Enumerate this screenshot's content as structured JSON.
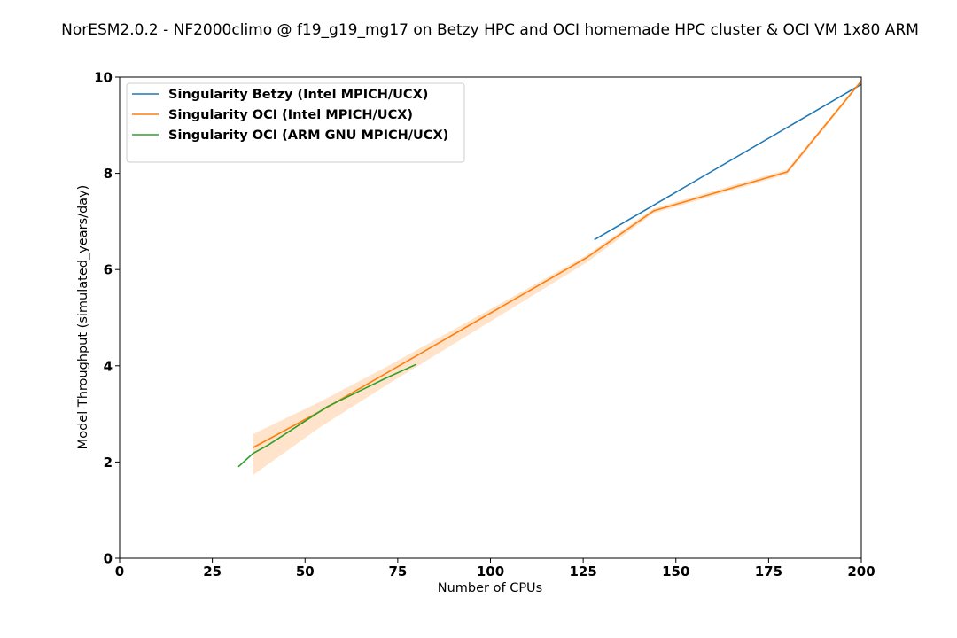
{
  "chart_data": {
    "type": "line",
    "title": "NorESM2.0.2 - NF2000climo @ f19_g19_mg17 on Betzy HPC and OCI homemade HPC cluster & OCI VM 1x80 ARM",
    "xlabel": "Number of CPUs",
    "ylabel": "Model Throughput (simulated_years/day)",
    "xlim": [
      0,
      200
    ],
    "ylim": [
      0,
      10
    ],
    "xticks": [
      "0",
      "25",
      "50",
      "75",
      "100",
      "125",
      "150",
      "175",
      "200"
    ],
    "yticks": [
      "0",
      "2",
      "4",
      "6",
      "8",
      "10"
    ],
    "legend_position": "top-left",
    "grid": false,
    "series": [
      {
        "name": "Singularity Betzy (Intel MPICH/UCX)",
        "color": "#1f77b4",
        "x": [
          128,
          200
        ],
        "y": [
          6.62,
          9.85
        ]
      },
      {
        "name": "Singularity OCI (Intel MPICH/UCX)",
        "color": "#ff7f0e",
        "x": [
          36,
          54,
          72,
          90,
          108,
          126,
          144,
          180,
          200
        ],
        "y": [
          2.3,
          3.05,
          3.85,
          4.65,
          5.45,
          6.25,
          7.22,
          8.03,
          9.92
        ],
        "band_upper": [
          2.58,
          3.25,
          3.98,
          4.75,
          5.52,
          6.3,
          7.27,
          8.08,
          9.95
        ],
        "band_lower": [
          1.73,
          2.72,
          3.6,
          4.45,
          5.3,
          6.15,
          7.17,
          7.98,
          9.88
        ]
      },
      {
        "name": "Singularity OCI (ARM GNU MPICH/UCX)",
        "color": "#2ca02c",
        "x": [
          32,
          36,
          40,
          48,
          56,
          64,
          72,
          80
        ],
        "y": [
          1.9,
          2.18,
          2.35,
          2.75,
          3.15,
          3.45,
          3.75,
          4.03
        ]
      }
    ]
  }
}
